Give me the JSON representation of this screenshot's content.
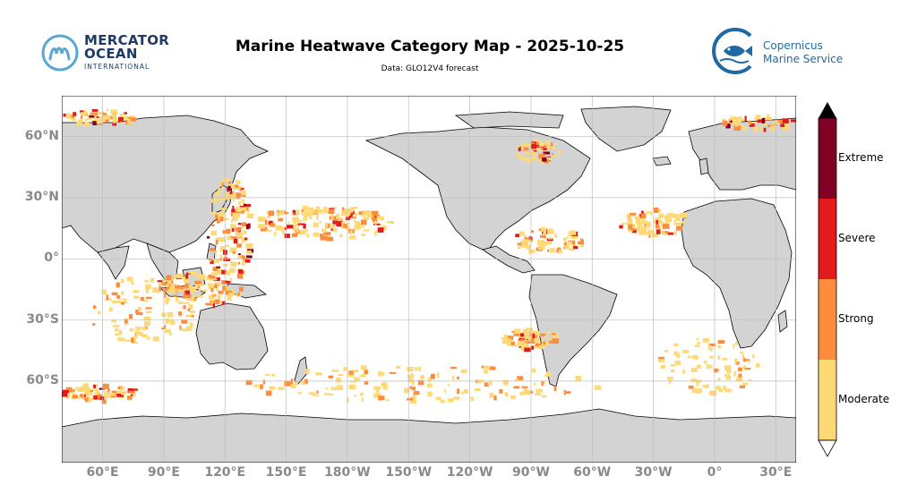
{
  "header": {
    "title": "Marine Heatwave Category Map - 2025-10-25",
    "subtitle": "Data: GLO12V4 forecast"
  },
  "logos": {
    "mercator": {
      "line1": "MERCATOR",
      "line2": "OCEAN",
      "line3": "INTERNATIONAL"
    },
    "copernicus": {
      "line1": "Copernicus",
      "line2": "Marine Service"
    }
  },
  "map": {
    "projection": "equirectangular",
    "central_longitude": -150,
    "lat_range": [
      -80,
      80
    ],
    "lat_ticks": [
      "60°N",
      "30°N",
      "0°",
      "30°S",
      "60°S"
    ],
    "lon_ticks": [
      "60°E",
      "90°E",
      "120°E",
      "150°E",
      "180°W",
      "150°W",
      "120°W",
      "90°W",
      "60°W",
      "30°W",
      "0°",
      "30°E"
    ],
    "colors": {
      "land": "#d3d3d3",
      "ocean": "#ffffff",
      "grid": "#bdbdbd",
      "coast": "#000000"
    }
  },
  "legend": {
    "categories": [
      {
        "label": "Moderate",
        "color": "#fed976"
      },
      {
        "label": "Strong",
        "color": "#fd8d3c"
      },
      {
        "label": "Severe",
        "color": "#e31a1c"
      },
      {
        "label": "Extreme",
        "color": "#800026"
      }
    ],
    "extend_color": "#000000"
  }
}
